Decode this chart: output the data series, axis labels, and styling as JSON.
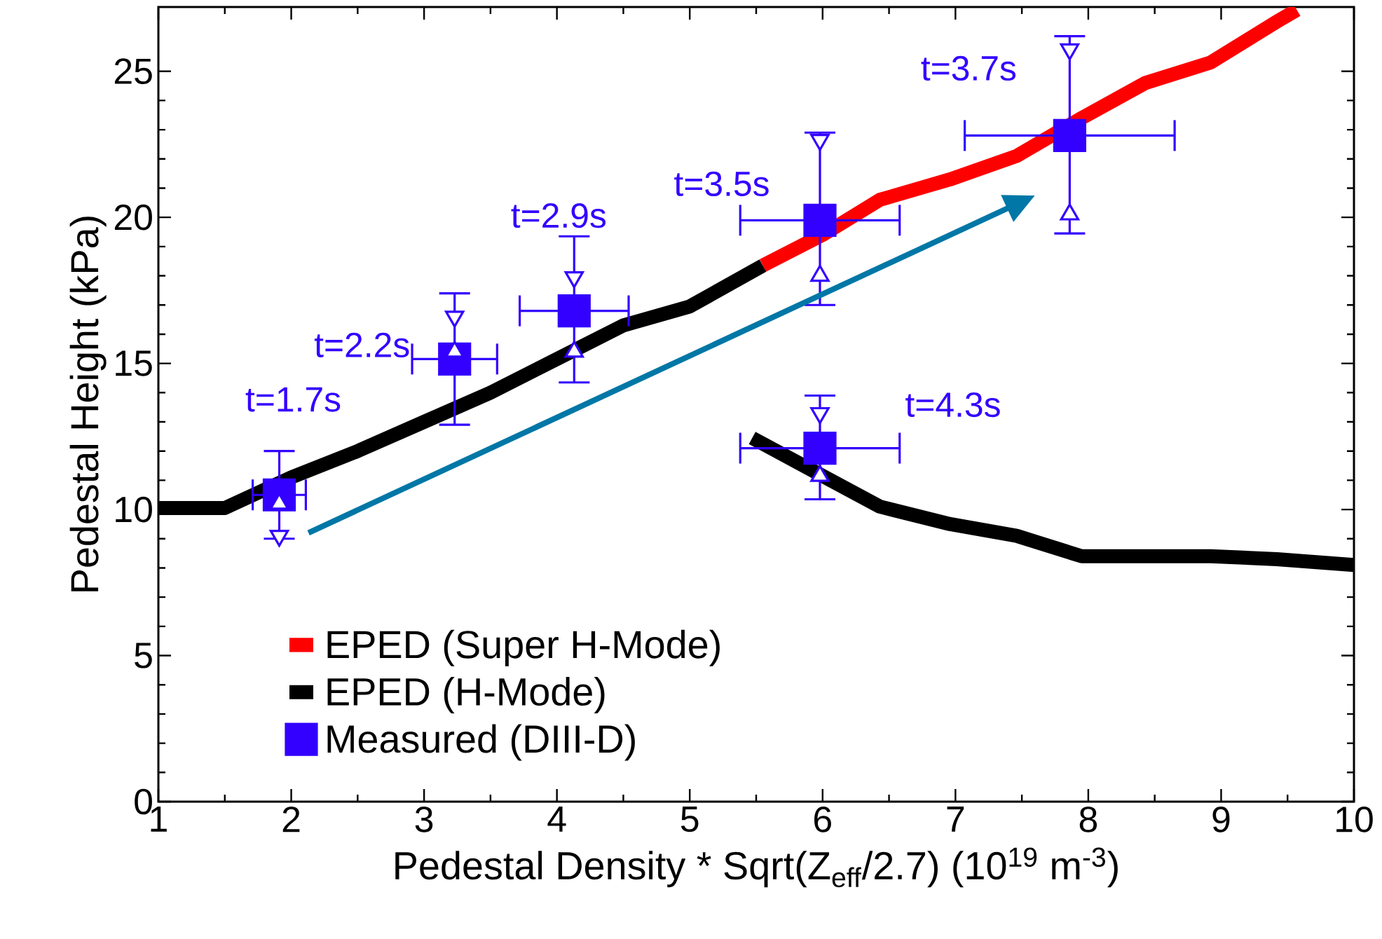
{
  "chart_data": {
    "type": "line",
    "xlabel": "Pedestal Density * Sqrt(Z$_{eff}$/2.7)  (10$^{19}$ m$^{-3}$)",
    "ylabel": "Pedestal Height (kPa)",
    "xlim": [
      1,
      10
    ],
    "ylim": [
      0,
      27.2
    ],
    "xticks": [
      1,
      2,
      3,
      4,
      5,
      6,
      7,
      8,
      9,
      10
    ],
    "yticks": [
      0,
      5,
      10,
      15,
      20,
      25
    ],
    "legend": "bottom left",
    "series": [
      {
        "name": "EPED (Super H-Mode)",
        "color": "#ff0000",
        "x": [
          5.55,
          6,
          6.43,
          6.96,
          7.46,
          7.95,
          8.43,
          8.92,
          9.42,
          9.57
        ],
        "values": [
          18.35,
          19.4,
          20.6,
          21.3,
          22.1,
          23.4,
          24.6,
          25.3,
          26.7,
          27.1
        ]
      },
      {
        "name": "EPED (H-Mode)",
        "color": "#000000",
        "x": [
          1,
          1.5,
          2,
          2.5,
          3,
          3.5,
          4,
          4.5,
          5,
          5.55
        ],
        "values": [
          10.05,
          10.05,
          11.1,
          12.0,
          13.0,
          14.0,
          15.15,
          16.3,
          16.95,
          18.35
        ]
      },
      {
        "color": "#000000",
        "x": [
          5.47,
          6,
          6.43,
          6.96,
          7.46,
          7.95,
          8.92,
          9.42,
          10
        ],
        "values": [
          12.45,
          11.15,
          10.1,
          9.5,
          9.1,
          8.4,
          8.4,
          8.3,
          8.1
        ]
      },
      {
        "name": "Measured (DIII-D)",
        "type": "scatter",
        "marker": "square",
        "color": "#3300ff",
        "x": [
          1.91,
          3.23,
          4.13,
          5.98,
          7.86,
          5.98
        ],
        "values": [
          10.5,
          15.15,
          16.8,
          19.9,
          22.8,
          12.1
        ],
        "xerrors": [
          0.2,
          0.32,
          0.41,
          0.6,
          0.79,
          0.6
        ],
        "errors": [
          [
            9.0,
            12.0
          ],
          [
            12.9,
            17.4
          ],
          [
            14.35,
            19.35
          ],
          [
            17.0,
            22.9
          ],
          [
            19.45,
            26.2
          ],
          [
            10.35,
            13.9
          ]
        ]
      },
      {
        "type": "scatter",
        "marker": "triangle",
        "color": "#3300ff",
        "x": [
          1.91,
          3.23,
          4.13,
          5.98,
          7.86,
          5.98
        ],
        "values": [
          10.2,
          15.4,
          15.4,
          18.0,
          20.1,
          11.15
        ]
      },
      {
        "type": "scatter",
        "marker": "triangle-down",
        "color": "#3300ff",
        "x": [
          1.91,
          3.23,
          4.13,
          5.98,
          7.86,
          5.98
        ],
        "values": [
          9.1,
          16.6,
          17.95,
          22.65,
          25.75,
          13.3
        ]
      }
    ],
    "annotations": [
      {
        "text": "t=1.7s",
        "x": 1.91,
        "y": 10.5
      },
      {
        "text": "t=2.2s",
        "x": 3.23,
        "y": 15.15
      },
      {
        "text": "t=2.9s",
        "x": 4.13,
        "y": 16.8
      },
      {
        "text": "t=3.5s",
        "x": 5.98,
        "y": 19.9
      },
      {
        "text": "t=3.7s",
        "x": 7.86,
        "y": 22.8
      },
      {
        "text": "t=4.3s",
        "x": 5.98,
        "y": 12.1
      }
    ]
  }
}
